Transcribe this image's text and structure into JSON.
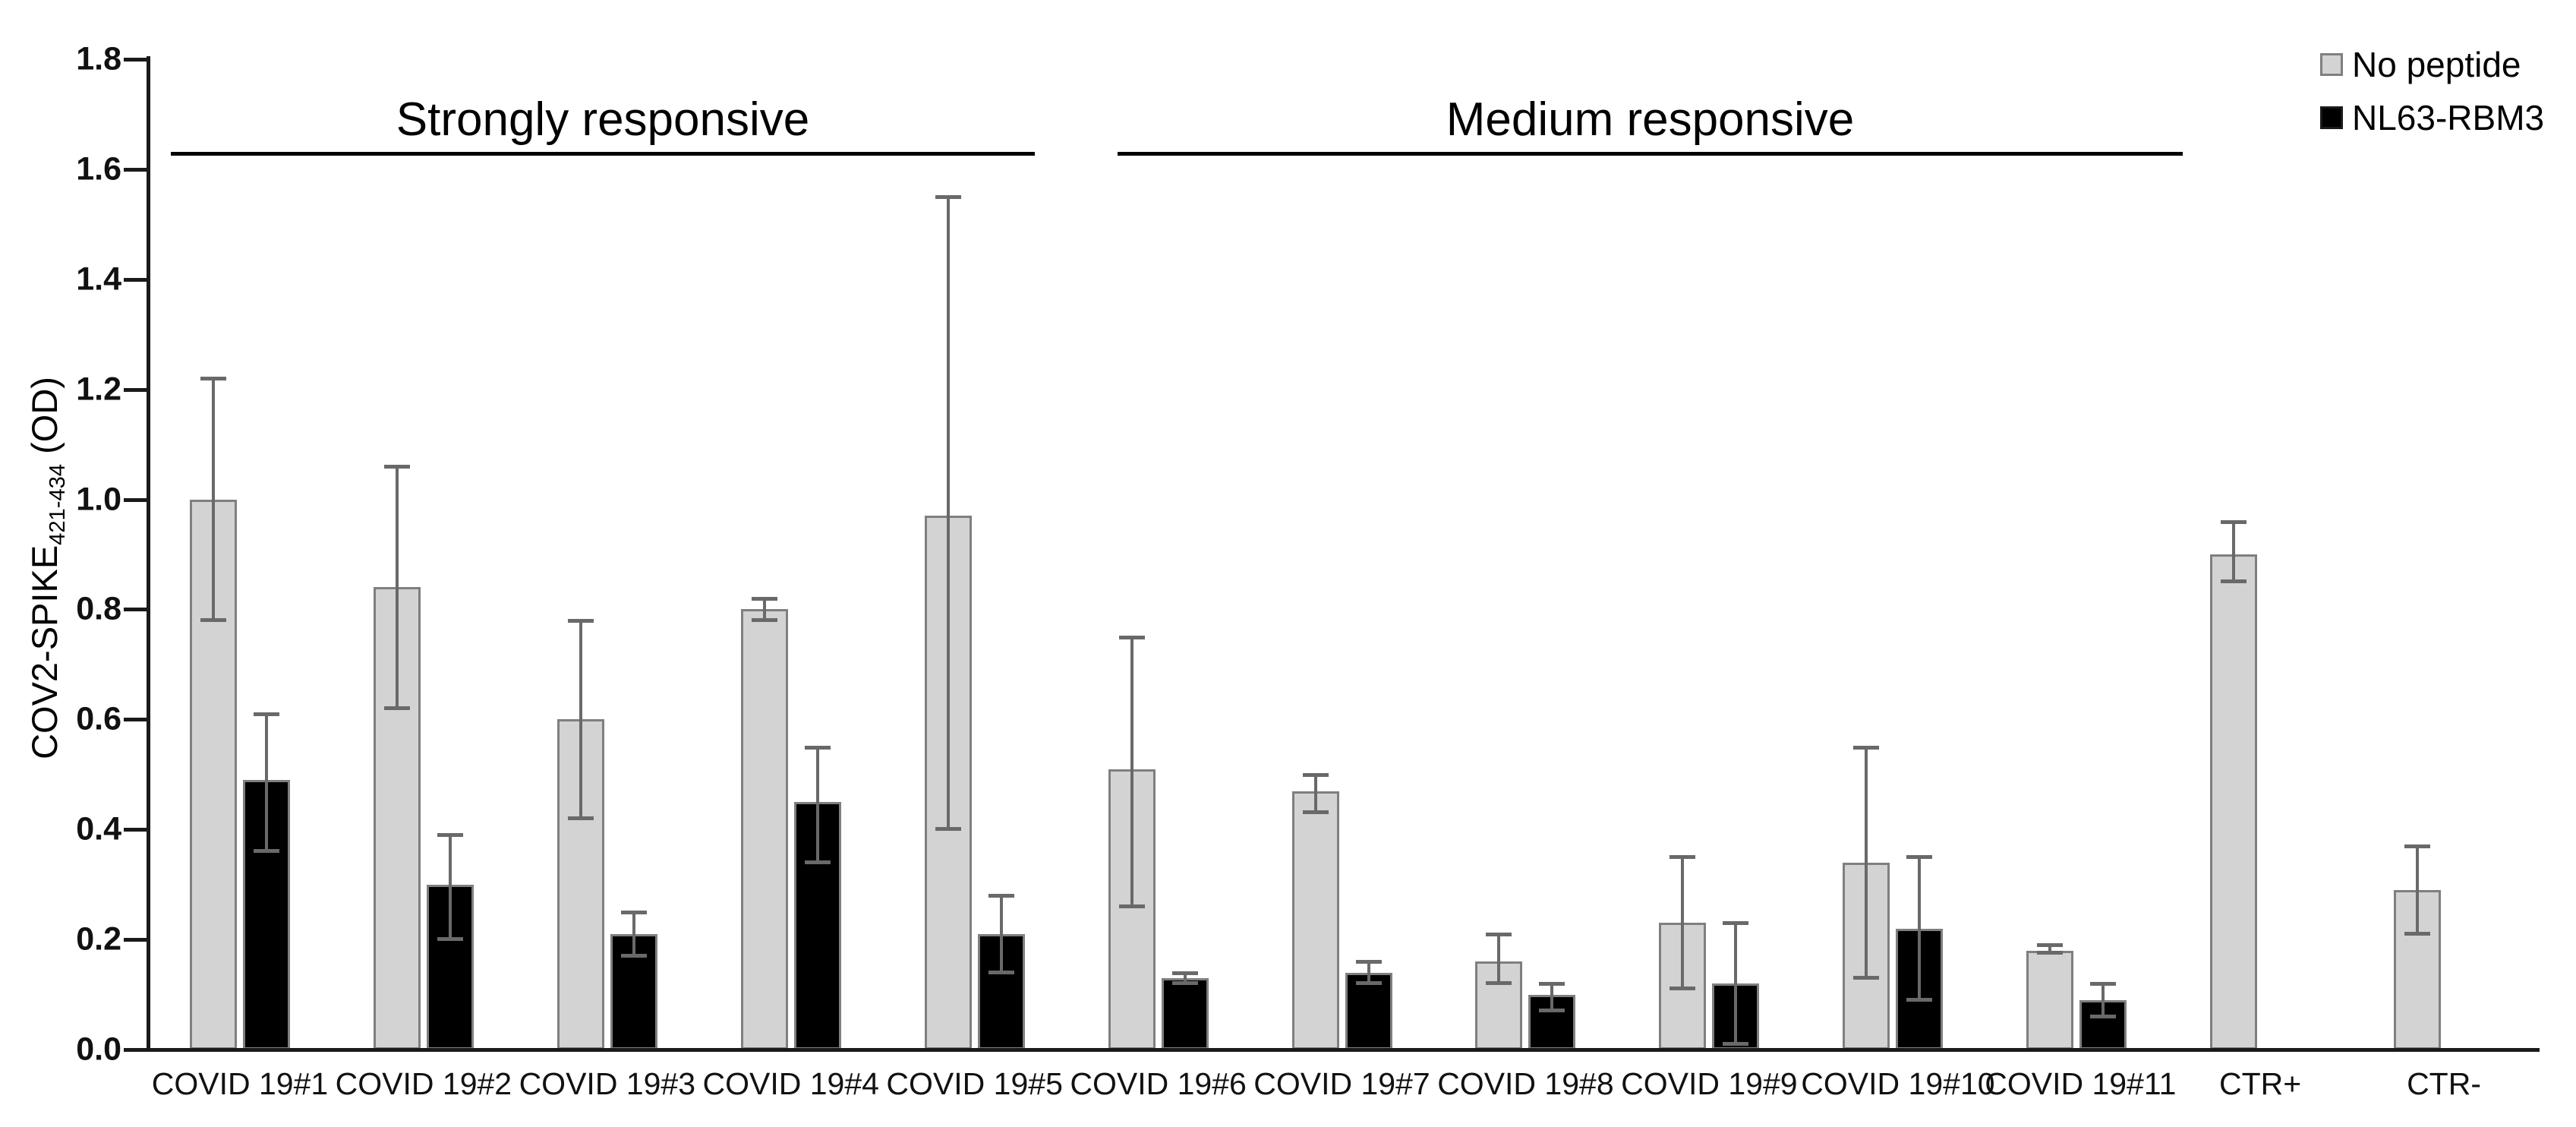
{
  "chart_data": {
    "type": "bar",
    "title": "",
    "ylabel": "COV2-SPIKE 421-434 (OD)",
    "ylabel_main": "COV2-SPIKE",
    "ylabel_subscript": "421-434",
    "ylabel_unit": " (OD)",
    "ylim": [
      0,
      1.8
    ],
    "ytick_step": 0.2,
    "grid": false,
    "legend_position": "top-right",
    "error_bar_color": "#696969",
    "categories": [
      "COVID 19#1",
      "COVID 19#2",
      "COVID 19#3",
      "COVID 19#4",
      "COVID 19#5",
      "COVID 19#6",
      "COVID 19#7",
      "COVID 19#8",
      "COVID 19#9",
      "COVID 19#10",
      "COVID 19#11",
      "CTR+",
      "CTR-"
    ],
    "series": [
      {
        "name": "No peptide",
        "color": "#d3d3d3",
        "border_color": "#7f7f7f",
        "values": [
          1.0,
          0.84,
          0.6,
          0.8,
          0.97,
          0.51,
          0.47,
          0.16,
          0.23,
          0.34,
          0.18,
          0.9,
          0.29
        ],
        "err_low": [
          0.78,
          0.62,
          0.42,
          0.78,
          0.4,
          0.26,
          0.43,
          0.12,
          0.11,
          0.13,
          0.175,
          0.85,
          0.21
        ],
        "err_high": [
          1.22,
          1.06,
          0.78,
          0.82,
          1.55,
          0.75,
          0.5,
          0.21,
          0.35,
          0.55,
          0.19,
          0.96,
          0.37
        ]
      },
      {
        "name": "NL63-RBM3",
        "color": "#000000",
        "border_color": "#7f7f7f",
        "values": [
          0.49,
          0.3,
          0.21,
          0.45,
          0.21,
          0.13,
          0.14,
          0.1,
          0.12,
          0.22,
          0.09,
          null,
          null
        ],
        "err_low": [
          0.36,
          0.2,
          0.17,
          0.34,
          0.14,
          0.12,
          0.12,
          0.07,
          0.01,
          0.09,
          0.06,
          null,
          null
        ],
        "err_high": [
          0.61,
          0.39,
          0.25,
          0.55,
          0.28,
          0.14,
          0.16,
          0.12,
          0.23,
          0.35,
          0.12,
          null,
          null
        ]
      }
    ],
    "annotations": [
      {
        "label": "Strongly responsive",
        "from_group": 0,
        "to_group": 4
      },
      {
        "label": "Medium responsive",
        "from_group": 5,
        "to_group": 10
      }
    ]
  }
}
